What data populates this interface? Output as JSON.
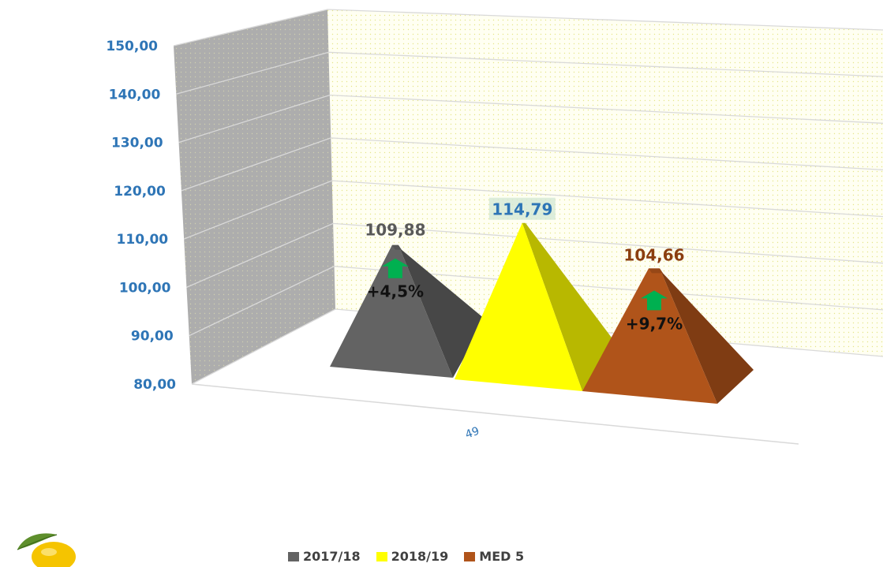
{
  "chart_data": {
    "type": "bar",
    "categories": [
      "49"
    ],
    "ylim": [
      80,
      150
    ],
    "yticks": [
      "80,00",
      "90,00",
      "100,00",
      "110,00",
      "120,00",
      "130,00",
      "140,00",
      "150,00"
    ],
    "series": [
      {
        "name": "2017/18",
        "values": [
          109.88
        ],
        "label": "109,88",
        "change": "+4,5%",
        "color": "#636363",
        "label_color": "#595959"
      },
      {
        "name": "2018/19",
        "values": [
          114.79
        ],
        "label": "114,79",
        "change": "",
        "color": "#ffff00",
        "label_color": "#2e75b6"
      },
      {
        "name": "MED 5",
        "values": [
          104.66
        ],
        "label": "104,66",
        "change": "+9,7%",
        "color": "#b0541a",
        "label_color": "#8b3e10"
      }
    ],
    "legend_position": "bottom",
    "grid": true
  }
}
